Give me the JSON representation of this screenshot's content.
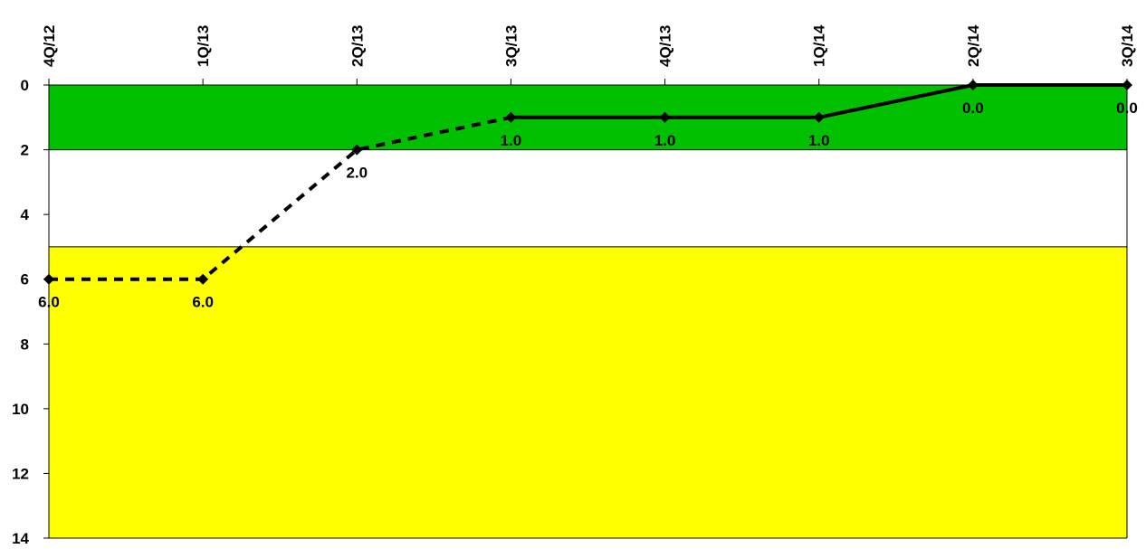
{
  "chart_data": {
    "type": "line",
    "title": "",
    "xlabel": "",
    "ylabel": "",
    "x_axis_position": "top",
    "y_axis_inverted": true,
    "categories": [
      "4Q/12",
      "1Q/13",
      "2Q/13",
      "3Q/13",
      "4Q/13",
      "1Q/14",
      "2Q/14",
      "3Q/14"
    ],
    "values": [
      6.0,
      6.0,
      2.0,
      1.0,
      1.0,
      1.0,
      0.0,
      0.0
    ],
    "data_labels": [
      "6.0",
      "6.0",
      "2.0",
      "1.0",
      "1.0",
      "1.0",
      "0.0",
      "0.0"
    ],
    "segments": [
      {
        "from": 0,
        "to": 3,
        "style": "dashed"
      },
      {
        "from": 3,
        "to": 7,
        "style": "solid"
      }
    ],
    "ylim": [
      0,
      14
    ],
    "yticks": [
      0,
      2,
      4,
      6,
      8,
      10,
      12,
      14
    ],
    "grid": false,
    "bands": [
      {
        "from": 0,
        "to": 2,
        "color": "#00c000"
      },
      {
        "from": 2,
        "to": 5,
        "color": "#ffffff"
      },
      {
        "from": 5,
        "to": 14,
        "color": "#ffff00"
      }
    ],
    "line_color": "#000000"
  }
}
